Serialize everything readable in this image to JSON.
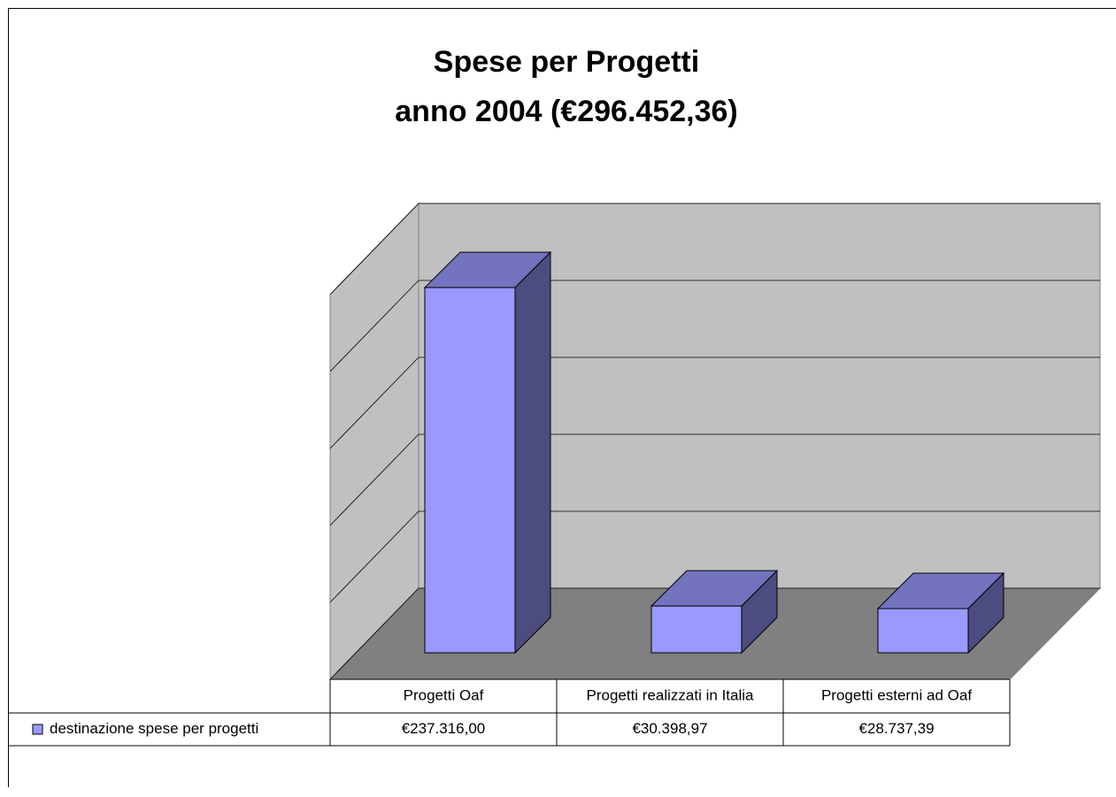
{
  "chart_data": {
    "type": "bar3d",
    "title": "Spese per Progetti",
    "subtitle": "anno 2004 (€296.452,36)",
    "categories": [
      "Progetti Oaf",
      "Progetti realizzati in Italia",
      "Progetti esterni ad Oaf"
    ],
    "series": [
      {
        "name": "destinazione spese per progetti",
        "color": "#9999ff",
        "values": [
          237316.0,
          30398.97,
          28737.39
        ],
        "value_labels": [
          "€237.316,00",
          "€30.398,97",
          "€28.737,39"
        ]
      }
    ],
    "ylim": [
      0,
      250000
    ],
    "yticks": [
      0,
      50000,
      100000,
      150000,
      200000,
      250000
    ],
    "grid": true
  }
}
